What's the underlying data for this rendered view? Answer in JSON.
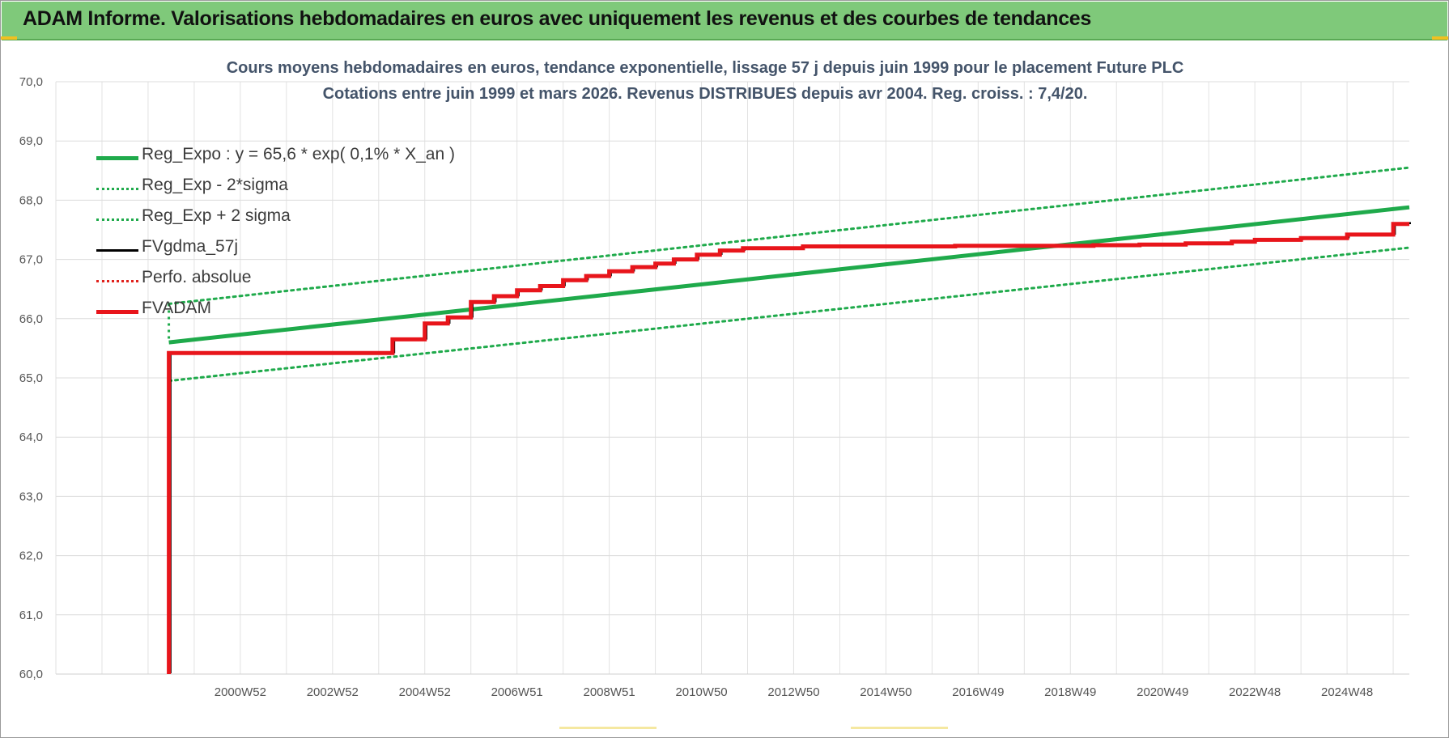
{
  "header": {
    "title": "ADAM Informe. Valorisations hebdomadaires en euros avec uniquement les revenus et des courbes de tendances"
  },
  "colors": {
    "header_bg": "#7fc97a",
    "reg_expo": "#1faa4b",
    "reg_band": "#1faa4b",
    "fvgdma": "#000000",
    "perfo": "#e0201b",
    "fvadam": "#e8151b",
    "title_text": "#44546a",
    "grid": "#dcdcdc"
  },
  "chart_data": {
    "type": "line",
    "title": "Cours moyens hebdomadaires en euros, tendance exponentielle, lissage 57 j depuis juin 1999 pour le placement Future PLC",
    "subtitle": "Cotations entre juin 1999 et mars 2026. Revenus DISTRIBUES depuis avr 2004. Reg. croiss. : 7,4/20.",
    "ylim": [
      60,
      70
    ],
    "yticks": [
      "60,0",
      "61,0",
      "62,0",
      "63,0",
      "64,0",
      "65,0",
      "66,0",
      "67,0",
      "68,0",
      "69,0",
      "70,0"
    ],
    "xlim": [
      1997.0,
      2026.35
    ],
    "xticks": [
      {
        "label": "2000W52",
        "x": 2001.0
      },
      {
        "label": "2002W52",
        "x": 2003.0
      },
      {
        "label": "2004W52",
        "x": 2005.0
      },
      {
        "label": "2006W51",
        "x": 2007.0
      },
      {
        "label": "2008W51",
        "x": 2009.0
      },
      {
        "label": "2010W50",
        "x": 2011.0
      },
      {
        "label": "2012W50",
        "x": 2013.0
      },
      {
        "label": "2014W50",
        "x": 2015.0
      },
      {
        "label": "2016W49",
        "x": 2017.0
      },
      {
        "label": "2018W49",
        "x": 2019.0
      },
      {
        "label": "2020W49",
        "x": 2021.0
      },
      {
        "label": "2022W48",
        "x": 2023.0
      },
      {
        "label": "2024W48",
        "x": 2025.0
      }
    ],
    "grid": true,
    "legend_position": "top-left",
    "legend": [
      {
        "name": "Reg_Expo : y = 65,6 * exp( 0,1% *  X_an )",
        "style": "solid-thick",
        "color": "#1faa4b"
      },
      {
        "name": "Reg_Exp - 2*sigma",
        "style": "dotted",
        "color": "#1faa4b"
      },
      {
        "name": "Reg_Exp + 2 sigma",
        "style": "dotted",
        "color": "#1faa4b"
      },
      {
        "name": "FVgdma_57j",
        "style": "solid",
        "color": "#000000"
      },
      {
        "name": "Perfo. absolue",
        "style": "dotted",
        "color": "#e0201b"
      },
      {
        "name": "FVADAM",
        "style": "solid-thick",
        "color": "#e8151b"
      }
    ],
    "series": [
      {
        "name": "Reg_Expo : y = 65,6 * exp( 0,1% *  X_an )",
        "x": [
          1999.45,
          2026.35
        ],
        "values": [
          65.6,
          67.88
        ]
      },
      {
        "name": "Reg_Exp - 2*sigma",
        "x": [
          1999.45,
          2026.35
        ],
        "values": [
          64.95,
          67.2
        ]
      },
      {
        "name": "Reg_Exp + 2 sigma",
        "x": [
          1999.45,
          2026.35
        ],
        "values": [
          66.25,
          68.55
        ]
      },
      {
        "name": "FVADAM",
        "x": [
          1999.45,
          1999.45,
          2004.3,
          2004.3,
          2005.0,
          2005.0,
          2005.5,
          2005.5,
          2006.0,
          2006.0,
          2006.5,
          2006.5,
          2007.0,
          2007.0,
          2007.5,
          2007.5,
          2008.0,
          2008.0,
          2008.5,
          2008.5,
          2009.0,
          2009.0,
          2009.5,
          2009.5,
          2010.0,
          2010.0,
          2010.4,
          2010.4,
          2010.9,
          2010.9,
          2011.4,
          2011.4,
          2011.9,
          2011.9,
          2013.2,
          2013.2,
          2016.5,
          2016.5,
          2019.5,
          2019.5,
          2020.5,
          2020.5,
          2021.5,
          2021.5,
          2022.5,
          2022.5,
          2023.0,
          2023.0,
          2024.0,
          2024.0,
          2025.0,
          2025.0,
          2026.0,
          2026.0,
          2026.35
        ],
        "values": [
          60.0,
          65.42,
          65.42,
          65.65,
          65.65,
          65.92,
          65.92,
          66.02,
          66.02,
          66.28,
          66.28,
          66.38,
          66.38,
          66.48,
          66.48,
          66.55,
          66.55,
          66.65,
          66.65,
          66.72,
          66.72,
          66.8,
          66.8,
          66.87,
          66.87,
          66.93,
          66.93,
          67.0,
          67.0,
          67.08,
          67.08,
          67.15,
          67.15,
          67.19,
          67.19,
          67.22,
          67.22,
          67.23,
          67.23,
          67.24,
          67.24,
          67.25,
          67.25,
          67.27,
          67.27,
          67.3,
          67.3,
          67.33,
          67.33,
          67.36,
          67.36,
          67.42,
          67.42,
          67.6,
          67.6
        ]
      }
    ]
  }
}
